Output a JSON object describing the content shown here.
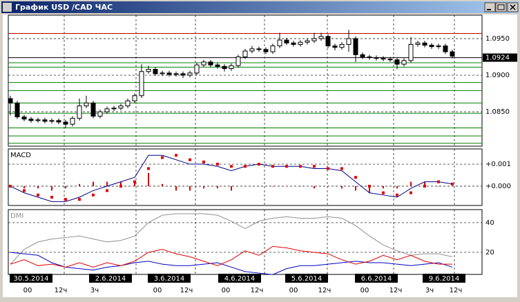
{
  "window": {
    "title": "График USD /CAD  ЧАС"
  },
  "chart_data": [
    {
      "type": "candlestick",
      "open": [
        1.0868,
        1.0862,
        1.0843,
        1.084,
        1.0838,
        1.0839,
        1.0837,
        1.0838,
        1.0836,
        1.0833,
        1.0841,
        1.0858,
        1.0862,
        1.0844,
        1.085,
        1.0854,
        1.0855,
        1.0858,
        1.0865,
        1.0872,
        1.0905,
        1.0908,
        1.0902,
        1.0903,
        1.0901,
        1.0902,
        1.09,
        1.0903,
        1.0914,
        1.0918,
        1.0914,
        1.0912,
        1.0909,
        1.0913,
        1.0925,
        1.0933,
        1.0936,
        1.0935,
        1.0932,
        1.094,
        1.0948,
        1.0944,
        1.0942,
        1.0945,
        1.0947,
        1.095,
        1.0953,
        1.094,
        1.0938,
        1.0942,
        1.095,
        1.0928,
        1.0925,
        1.0924,
        1.0923,
        1.0922,
        1.0921,
        1.0915,
        1.092,
        1.0942,
        1.0944,
        1.0941,
        1.0939,
        1.094,
        1.0932
      ],
      "high": [
        1.0872,
        1.0865,
        1.0846,
        1.0843,
        1.0842,
        1.0842,
        1.0841,
        1.0841,
        1.0839,
        1.0844,
        1.0868,
        1.0872,
        1.0865,
        1.0853,
        1.0857,
        1.0858,
        1.0861,
        1.0868,
        1.0875,
        1.0915,
        1.0913,
        1.0911,
        1.0906,
        1.0906,
        1.0905,
        1.0905,
        1.0906,
        1.0917,
        1.0921,
        1.0921,
        1.0917,
        1.0915,
        1.0916,
        1.0928,
        1.0936,
        1.094,
        1.0939,
        1.0938,
        1.0943,
        1.0958,
        1.0951,
        1.0947,
        1.0948,
        1.095,
        1.0958,
        1.0958,
        1.0956,
        1.0943,
        1.0945,
        1.0962,
        1.0953,
        1.0931,
        1.0928,
        1.0927,
        1.0926,
        1.0925,
        1.0924,
        1.0923,
        1.0952,
        1.0947,
        1.0947,
        1.0944,
        1.0943,
        1.0943,
        1.0935
      ],
      "low": [
        1.0845,
        1.084,
        1.0837,
        1.0835,
        1.0835,
        1.0834,
        1.0834,
        1.0833,
        1.0828,
        1.083,
        1.0838,
        1.0855,
        1.0841,
        1.0841,
        1.0847,
        1.0851,
        1.0852,
        1.0855,
        1.0862,
        1.0869,
        1.0902,
        1.0899,
        1.0899,
        1.0898,
        1.0898,
        1.0896,
        1.0897,
        1.09,
        1.0911,
        1.0911,
        1.0909,
        1.0905,
        1.0906,
        1.091,
        1.0922,
        1.093,
        1.0932,
        1.0929,
        1.0929,
        1.0937,
        1.0941,
        1.0939,
        1.0939,
        1.0942,
        1.0944,
        1.0947,
        1.0937,
        1.0934,
        1.0935,
        1.0932,
        1.0918,
        1.0922,
        1.0921,
        1.092,
        1.0919,
        1.0918,
        1.0908,
        1.0912,
        1.0917,
        1.0939,
        1.0938,
        1.0936,
        1.0936,
        1.0929,
        1.0923
      ],
      "close": [
        1.0862,
        1.0843,
        1.084,
        1.0838,
        1.0839,
        1.0837,
        1.0838,
        1.0836,
        1.0833,
        1.0841,
        1.0858,
        1.0862,
        1.0844,
        1.085,
        1.0854,
        1.0855,
        1.0858,
        1.0865,
        1.0872,
        1.0905,
        1.0908,
        1.0902,
        1.0903,
        1.0901,
        1.0902,
        1.09,
        1.0903,
        1.0914,
        1.0918,
        1.0914,
        1.0912,
        1.0909,
        1.0913,
        1.0925,
        1.0933,
        1.0936,
        1.0935,
        1.0932,
        1.094,
        1.0948,
        1.0944,
        1.0942,
        1.0945,
        1.0947,
        1.095,
        1.0953,
        1.094,
        1.0938,
        1.0942,
        1.095,
        1.0928,
        1.0925,
        1.0924,
        1.0923,
        1.0922,
        1.0921,
        1.0915,
        1.092,
        1.0942,
        1.0944,
        1.0941,
        1.0939,
        1.094,
        1.0932,
        1.0926
      ],
      "last_price": 1.0924,
      "levels": [
        {
          "value": 1.0957,
          "color": "#c00000"
        },
        {
          "value": 1.0917,
          "color": "#008000"
        },
        {
          "value": 1.0911,
          "color": "#008000"
        },
        {
          "value": 1.089,
          "color": "#008000"
        },
        {
          "value": 1.0879,
          "color": "#008000"
        },
        {
          "value": 1.0862,
          "color": "#008000"
        },
        {
          "value": 1.0848,
          "color": "#008000"
        },
        {
          "value": 1.0828,
          "color": "#008000"
        },
        {
          "value": 1.0817,
          "color": "#008000"
        },
        {
          "value": 1.0807,
          "color": "#008000"
        }
      ],
      "ylim": [
        1.0803,
        1.0982
      ],
      "yticks": [
        {
          "value": 1.095,
          "label": "1.0950"
        },
        {
          "value": 1.09,
          "label": "1.0900"
        },
        {
          "value": 1.085,
          "label": "1.0850"
        }
      ]
    },
    {
      "type": "line",
      "title": "MACD",
      "series": [
        {
          "style": "bars",
          "color": "#d40000",
          "values": [
            0,
            -0.0001,
            -0.0001,
            -0.0002,
            -0.0001,
            0.0001,
            0.0002,
            0.0002,
            0.0002,
            0.0002,
            0.0006,
            0.0001,
            -0.0002,
            -0.0002,
            -0.0001,
            -0.0001,
            -0.0002,
            0,
            0,
            0,
            0,
            0,
            -0.0001,
            0,
            -0.0001,
            -0.0002,
            -0.0003,
            -0.0001,
            -0.0001,
            0.0002,
            0.0002,
            0,
            0
          ]
        },
        {
          "style": "line",
          "color": "#000080",
          "values": [
            0,
            -0.0003,
            -0.0005,
            -0.0007,
            -0.0007,
            -0.0005,
            -0.0002,
            0,
            0.0002,
            0.0004,
            0.0014,
            0.0014,
            0.0012,
            0.001,
            0.001,
            0.0009,
            0.0007,
            0.0009,
            0.001,
            0.0009,
            0.0009,
            0.0009,
            0.0008,
            0.0008,
            0.0007,
            0.0002,
            -0.0003,
            -0.0004,
            -0.0005,
            -0.0001,
            0.0002,
            0.0002,
            0.0001
          ]
        },
        {
          "style": "dots",
          "color": "#e00000",
          "values": [
            0,
            -0.0002,
            -0.0004,
            -0.0005,
            -0.0006,
            -0.0006,
            -0.0004,
            -0.0002,
            0,
            0.0002,
            0.0008,
            0.0013,
            0.0014,
            0.0012,
            0.0011,
            0.001,
            0.0009,
            0.0009,
            0.001,
            0.0009,
            0.0009,
            0.0009,
            0.0009,
            0.0008,
            0.0008,
            0.0004,
            0,
            -0.0003,
            -0.0004,
            -0.0003,
            0,
            0.0002,
            0.0001
          ]
        }
      ],
      "ylim": [
        -0.000875,
        0.00169
      ],
      "yticks": [
        {
          "value": 0.001,
          "label": "+0.001"
        },
        {
          "value": 0,
          "label": "+0.000"
        }
      ]
    },
    {
      "type": "line",
      "title": "DMI",
      "series": [
        {
          "style": "line",
          "color": "#909090",
          "values": [
            12,
            22,
            27,
            29,
            30,
            31,
            29,
            27,
            28,
            31,
            40,
            45,
            46,
            46,
            46,
            45,
            41,
            36,
            41,
            43,
            44,
            43,
            43,
            44,
            43,
            38,
            31,
            25,
            21,
            18,
            19,
            19,
            17
          ]
        },
        {
          "style": "line",
          "color": "#0000c0",
          "values": [
            20,
            19,
            18,
            13,
            10,
            9,
            8,
            10,
            11,
            13,
            14,
            12,
            11,
            11,
            12,
            13,
            10,
            7,
            6,
            5,
            9,
            11,
            11,
            12,
            13,
            14,
            13,
            13,
            12,
            11,
            12,
            13,
            10
          ]
        },
        {
          "style": "line",
          "color": "#e00000",
          "values": [
            12,
            15,
            11,
            12,
            10,
            13,
            10,
            13,
            11,
            14,
            20,
            22,
            19,
            17,
            14,
            11,
            15,
            21,
            18,
            24,
            23,
            21,
            20,
            19,
            15,
            12,
            14,
            18,
            15,
            18,
            14,
            12,
            12
          ]
        }
      ],
      "ylim": [
        5.1,
        48.8
      ],
      "yticks": [
        40,
        20
      ]
    }
  ],
  "time_axis": {
    "dates": [
      "30.5.2014",
      "2.6.2014",
      "3.6.2014",
      "4.6.2014",
      "5.6.2014",
      "6.6.2014",
      "9.6.2014"
    ],
    "hours": [
      "00",
      "12ч",
      "3ч",
      "00",
      "12ч",
      "00",
      "12ч",
      "00",
      "12ч",
      "00",
      "12ч",
      "3ч",
      "12ч"
    ]
  }
}
